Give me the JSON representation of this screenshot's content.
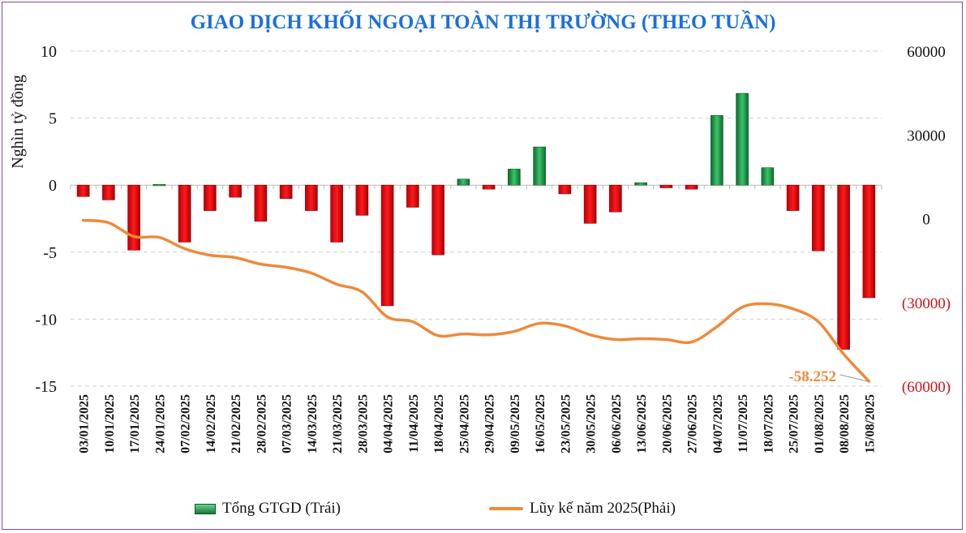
{
  "chart_data": {
    "type": "bar+line",
    "title": "GIAO DỊCH KHỐI NGOẠI TOÀN THỊ TRƯỜNG (THEO TUẦN)",
    "ylabel": "Nghìn tỷ đồng",
    "ylim": [
      -15,
      10
    ],
    "yticks": [
      "10",
      "5",
      "0",
      "-5",
      "-10",
      "-15"
    ],
    "yticks_values": [
      10,
      5,
      0,
      -5,
      -10,
      -15
    ],
    "y2lim": [
      -60000,
      60000
    ],
    "y2ticks": [
      "60000",
      "30000",
      "0",
      "(30000)",
      "(60000)"
    ],
    "y2ticks_values": [
      60000,
      30000,
      0,
      -30000,
      -60000
    ],
    "grid": true,
    "legend_placement": "bottom",
    "categories": [
      "03/01/2025",
      "10/01/2025",
      "17/01/2025",
      "24/01/2025",
      "07/02/2025",
      "14/02/2025",
      "21/02/2025",
      "28/02/2025",
      "07/03/2025",
      "14/03/2025",
      "21/03/2025",
      "28/03/2025",
      "04/04/2025",
      "11/04/2025",
      "18/04/2025",
      "25/04/2025",
      "29/04/2025",
      "09/05/2025",
      "16/05/2025",
      "23/05/2025",
      "30/05/2025",
      "06/06/2025",
      "13/06/2025",
      "20/06/2025",
      "27/06/2025",
      "04/07/2025",
      "11/07/2025",
      "18/07/2025",
      "25/07/2025",
      "01/08/2025",
      "08/08/2025",
      "15/08/2025"
    ],
    "series": [
      {
        "name": "Tổng GTGD (Trái)",
        "type": "bar",
        "axis": "left",
        "values": [
          -0.85,
          -1.1,
          -4.85,
          0.05,
          -4.25,
          -1.9,
          -0.9,
          -2.7,
          -1.0,
          -1.9,
          -4.25,
          -2.25,
          -9.0,
          -1.65,
          -5.2,
          0.45,
          -0.3,
          1.2,
          2.85,
          -0.65,
          -2.85,
          -2.0,
          0.18,
          -0.2,
          -0.3,
          5.2,
          6.85,
          1.3,
          -1.9,
          -4.9,
          -12.25,
          -8.4
        ]
      },
      {
        "name": "Lũy kế năm 2025(Phải)",
        "type": "line",
        "axis": "right",
        "values": [
          -600,
          -1450,
          -6400,
          -6700,
          -10750,
          -13100,
          -13950,
          -16300,
          -17400,
          -19500,
          -23500,
          -26200,
          -35200,
          -36900,
          -41900,
          -41300,
          -41600,
          -40400,
          -37500,
          -38400,
          -41600,
          -43300,
          -43000,
          -43300,
          -44200,
          -38700,
          -31700,
          -30500,
          -32300,
          -36900,
          -48500,
          -58252
        ]
      }
    ],
    "annotation": "-58.252",
    "colors": {
      "positive": "#1a9a4a",
      "negative": "#e0000a",
      "line": "#ee8a3a",
      "title": "#1a6fe0",
      "neg_tick": "#d0121c"
    }
  }
}
